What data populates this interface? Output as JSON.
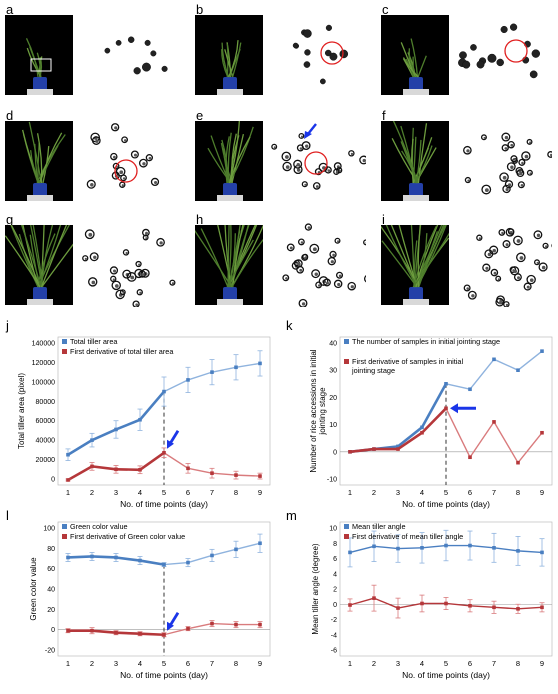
{
  "panels": {
    "a": "a",
    "b": "b",
    "c": "c",
    "d": "d",
    "e": "e",
    "f": "f",
    "g": "g",
    "h": "h",
    "i": "i",
    "j": "j",
    "k": "k",
    "l": "l",
    "m": "m"
  },
  "colors": {
    "blue": "#4a7fc1",
    "light_blue": "#8fb3de",
    "red": "#b5373a",
    "light_red": "#d97b7d",
    "arrow": "#1a35e8",
    "circle": "#e02020"
  },
  "chart_data": [
    {
      "id": "j",
      "type": "line",
      "ylabel": "Total tiller area (pixel)",
      "xlabel": "No. of time points (day)",
      "x": [
        1,
        2,
        3,
        4,
        5,
        6,
        7,
        8,
        9
      ],
      "ylim": [
        0,
        140000
      ],
      "yticks": [
        "0",
        "20000",
        "40000",
        "60000",
        "80000",
        "100000",
        "120000",
        "140000"
      ],
      "xticks": [
        "1",
        "2",
        "3",
        "4",
        "5",
        "6",
        "7",
        "8",
        "9"
      ],
      "series": [
        {
          "name": "Total tiller area",
          "color": "#4a7fc1",
          "values": [
            25000,
            40000,
            51000,
            61000,
            90000,
            102000,
            110000,
            115000,
            119000
          ],
          "err": [
            6000,
            7000,
            9000,
            11000,
            15000,
            13000,
            13000,
            13000,
            13000
          ]
        },
        {
          "name": "First derivative of total tiller area",
          "color": "#b5373a",
          "values": [
            -1000,
            13000,
            10000,
            9500,
            27000,
            11000,
            6000,
            4000,
            3000
          ],
          "err": [
            1000,
            4000,
            4000,
            4000,
            5000,
            5000,
            5000,
            4000,
            3000
          ]
        }
      ],
      "dashed_x": 5,
      "arrow_at": [
        5,
        27000
      ]
    },
    {
      "id": "k",
      "type": "line",
      "ylabel": "Number of rice accessions in initial jointing stage",
      "xlabel": "No. of time points (day)",
      "x": [
        1,
        2,
        3,
        4,
        5,
        6,
        7,
        8,
        9
      ],
      "ylim": [
        -10,
        40
      ],
      "yticks": [
        "-10",
        "0",
        "10",
        "20",
        "30",
        "40"
      ],
      "xticks": [
        "1",
        "2",
        "3",
        "4",
        "5",
        "6",
        "7",
        "8",
        "9"
      ],
      "series": [
        {
          "name": "The number of samples in initial jointing stage",
          "color": "#4a7fc1",
          "values": [
            0,
            1,
            2,
            9,
            25,
            23,
            34,
            30,
            37
          ]
        },
        {
          "name": "First derivative of samples in initial jointing stage",
          "color": "#b5373a",
          "values": [
            0,
            1,
            1,
            7,
            16,
            -2,
            11,
            -4,
            7
          ]
        }
      ],
      "dashed_x": 5,
      "arrow_at": [
        5,
        16
      ]
    },
    {
      "id": "l",
      "type": "line",
      "ylabel": "Green color value",
      "xlabel": "No. of time points (day)",
      "x": [
        1,
        2,
        3,
        4,
        5,
        6,
        7,
        8,
        9
      ],
      "ylim": [
        -20,
        100
      ],
      "yticks": [
        "-20",
        "0",
        "20",
        "40",
        "60",
        "80",
        "100"
      ],
      "xticks": [
        "1",
        "2",
        "3",
        "4",
        "5",
        "6",
        "7",
        "8",
        "9"
      ],
      "series": [
        {
          "name": "Green color value",
          "color": "#4a7fc1",
          "values": [
            71,
            72,
            71,
            68,
            64,
            66,
            73,
            79,
            85
          ],
          "err": [
            4,
            4,
            4,
            4,
            2,
            4,
            6,
            8,
            9
          ]
        },
        {
          "name": "First derivative of Green color value",
          "color": "#b5373a",
          "values": [
            -1,
            -1,
            -3,
            -4,
            -5,
            1,
            6,
            5,
            5
          ],
          "err": [
            2,
            3,
            2,
            2,
            2,
            2,
            3,
            3,
            3
          ]
        }
      ],
      "dashed_x": 5,
      "arrow_at": [
        5,
        -5
      ]
    },
    {
      "id": "m",
      "type": "line",
      "ylabel": "Mean tiller angle (degree)",
      "xlabel": "No. of time points (day)",
      "x": [
        1,
        2,
        3,
        4,
        5,
        6,
        7,
        8,
        9
      ],
      "ylim": [
        -6,
        10
      ],
      "yticks": [
        "-6",
        "-4",
        "-2",
        "0",
        "2",
        "4",
        "6",
        "8",
        "10"
      ],
      "xticks": [
        "1",
        "2",
        "3",
        "4",
        "5",
        "6",
        "7",
        "8",
        "9"
      ],
      "series": [
        {
          "name": "Mean tiller angle",
          "color": "#4a7fc1",
          "values": [
            6.8,
            7.6,
            7.3,
            7.4,
            7.7,
            7.7,
            7.4,
            7.0,
            6.8
          ],
          "err": [
            1.9,
            2.0,
            1.8,
            2.0,
            2.0,
            1.9,
            1.9,
            1.9,
            1.8
          ]
        },
        {
          "name": "First derivative of mean tiller angle",
          "color": "#b5373a",
          "values": [
            -0.1,
            0.8,
            -0.5,
            0.1,
            0.1,
            -0.2,
            -0.4,
            -0.6,
            -0.4
          ],
          "err": [
            0.8,
            1.7,
            1.3,
            1.1,
            0.8,
            0.8,
            0.8,
            0.6,
            0.6
          ]
        }
      ]
    }
  ]
}
